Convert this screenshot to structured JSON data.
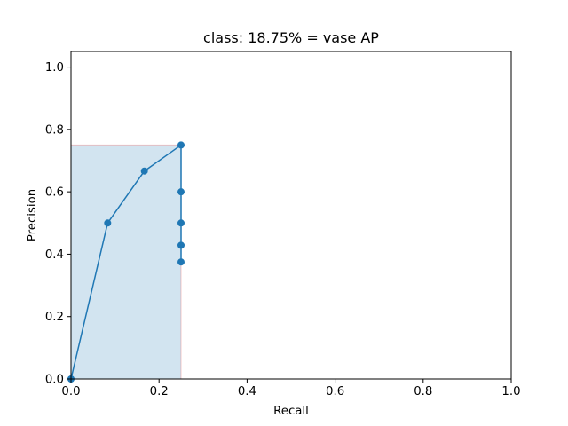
{
  "chart_data": {
    "type": "line",
    "title": "class: 18.75% = vase AP",
    "xlabel": "Recall",
    "ylabel": "Precision",
    "xlim": [
      0.0,
      1.0
    ],
    "ylim": [
      0.0,
      1.05
    ],
    "x_ticks": [
      "0.0",
      "0.2",
      "0.4",
      "0.6",
      "0.8",
      "1.0"
    ],
    "y_ticks": [
      "0.0",
      "0.2",
      "0.4",
      "0.6",
      "0.8",
      "1.0"
    ],
    "grid": false,
    "series": [
      {
        "x": [
          0.0,
          0.0833,
          0.1667,
          0.25,
          0.25,
          0.25,
          0.25,
          0.25
        ],
        "y": [
          0.0,
          0.5,
          0.6667,
          0.75,
          0.6,
          0.5,
          0.4286,
          0.375
        ],
        "color": "#1f77b4",
        "marker": "circle"
      }
    ],
    "area_fill": {
      "x": [
        0.0,
        0.0,
        0.25,
        0.25
      ],
      "y": [
        0.0,
        0.75,
        0.75,
        0.0
      ],
      "fill_color": "#1f77b4",
      "fill_opacity": 0.2,
      "edge_color": "#d62728"
    }
  }
}
